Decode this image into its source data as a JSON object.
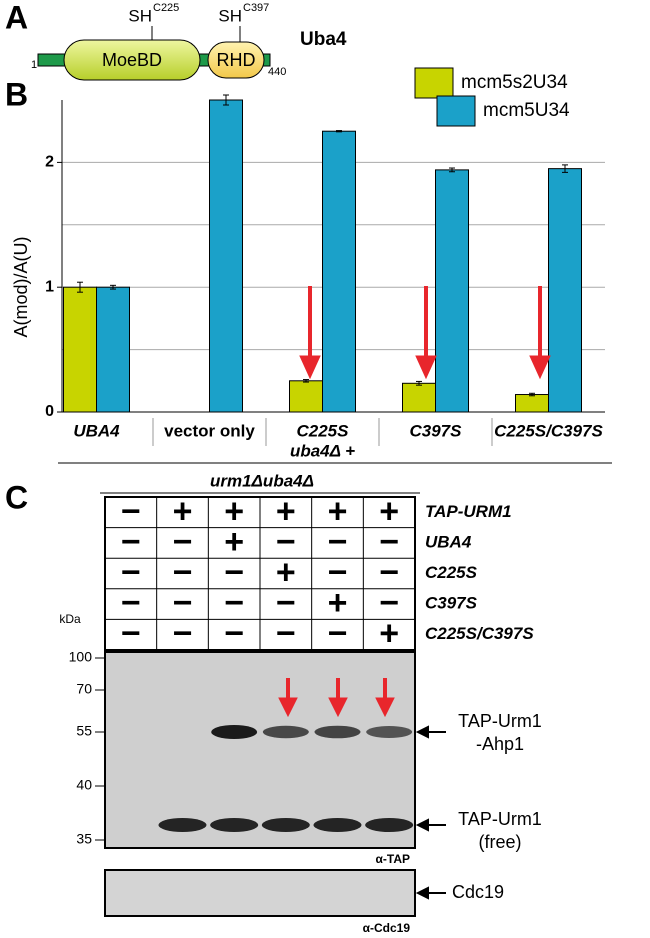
{
  "panel_a": {
    "letter": "A",
    "protein": "Uba4",
    "domains": [
      "MoeBD",
      "RHD"
    ],
    "start": "1",
    "end": "440",
    "sites": [
      {
        "group": "SH",
        "residue": "C225"
      },
      {
        "group": "SH",
        "residue": "C397"
      }
    ]
  },
  "chart_data": {
    "type": "bar",
    "letter": "B",
    "ylabel": "A(mod)/A(U)",
    "categories": [
      "UBA4",
      "vector only",
      "C225S",
      "C397S",
      "C225S/C397S"
    ],
    "group_label": "uba4Δ +",
    "series": [
      {
        "name": "mcm5s2U34",
        "color": "#c8d400",
        "values": [
          1.0,
          null,
          0.25,
          0.23,
          0.14
        ],
        "errors": [
          0.04,
          null,
          0.01,
          0.015,
          0.01
        ]
      },
      {
        "name": "mcm5U34",
        "color": "#1ba1c9",
        "values": [
          1.0,
          2.5,
          2.25,
          1.94,
          1.95
        ],
        "errors": [
          0.015,
          0.04,
          0.005,
          0.015,
          0.03
        ]
      }
    ],
    "ylim": [
      0,
      2.5
    ],
    "yticks": [
      0,
      1,
      2
    ],
    "ygrid": [
      0.5,
      1,
      1.5,
      2
    ],
    "legend": "top-right"
  },
  "panel_c": {
    "letter": "C",
    "strain": "urm1Δuba4Δ",
    "rows": [
      {
        "label": "TAP-URM1",
        "cells": [
          "−",
          "+",
          "+",
          "+",
          "+",
          "+"
        ]
      },
      {
        "label": "UBA4",
        "cells": [
          "−",
          "−",
          "+",
          "−",
          "−",
          "−"
        ]
      },
      {
        "label": "C225S",
        "cells": [
          "−",
          "−",
          "−",
          "+",
          "−",
          "−"
        ]
      },
      {
        "label": "C397S",
        "cells": [
          "−",
          "−",
          "−",
          "−",
          "+",
          "−"
        ]
      },
      {
        "label": "C225S/C397S",
        "cells": [
          "−",
          "−",
          "−",
          "−",
          "−",
          "+"
        ]
      }
    ],
    "unit": "kDa",
    "markers": [
      100,
      70,
      55,
      40,
      35
    ],
    "band_labels": [
      [
        "TAP-Urm1",
        "-Ahp1"
      ],
      [
        "TAP-Urm1",
        "(free)"
      ]
    ],
    "antibody": "α-TAP",
    "loading_label": "Cdc19",
    "loading_antibody": "α-Cdc19"
  }
}
